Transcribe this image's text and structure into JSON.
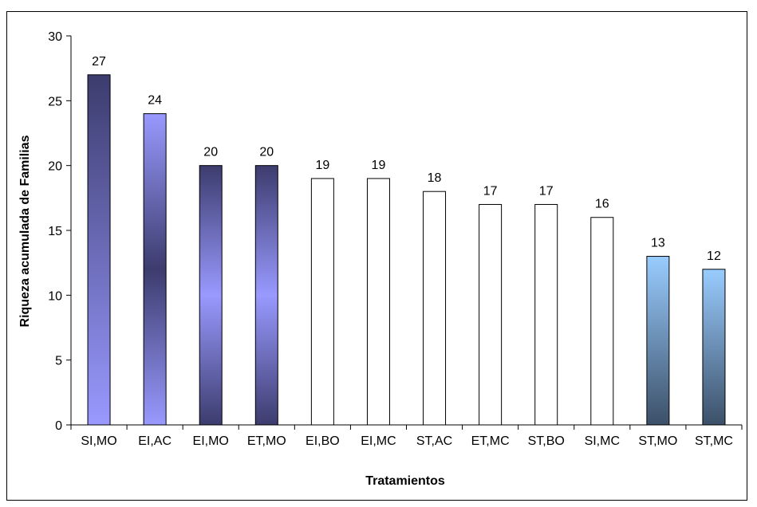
{
  "chart_data": {
    "type": "bar",
    "title": "",
    "xlabel": "Tratamientos",
    "ylabel": "Riqueza acumulada de Familias",
    "ylim": [
      0,
      30
    ],
    "yticks": [
      0,
      5,
      10,
      15,
      20,
      25,
      30
    ],
    "grid": false,
    "legend": "none",
    "categories": [
      "SI,MO",
      "EI,AC",
      "EI,MO",
      "ET,MO",
      "EI,BO",
      "EI,MC",
      "ST,AC",
      "ET,MC",
      "ST,BO",
      "SI,MC",
      "ST,MO",
      "ST,MC"
    ],
    "values": [
      27,
      24,
      20,
      20,
      19,
      19,
      18,
      17,
      17,
      16,
      13,
      12
    ],
    "data_labels": [
      "27",
      "24",
      "20",
      "20",
      "19",
      "19",
      "18",
      "17",
      "17",
      "16",
      "13",
      "12"
    ],
    "bar_fills": [
      "dark-to-periwinkle",
      "periwinkle-dark-center",
      "dark-periwinkle-center",
      "dark-periwinkle-center",
      "white",
      "white",
      "white",
      "white",
      "white",
      "white",
      "lightblue-to-slate",
      "lightblue-to-slate"
    ],
    "colors": {
      "periwinkle": "#9999ff",
      "dark_navy": "#3c3c6e",
      "light_blue": "#99ccff",
      "slate": "#3c5068",
      "white": "#ffffff",
      "outline": "#000000"
    }
  }
}
